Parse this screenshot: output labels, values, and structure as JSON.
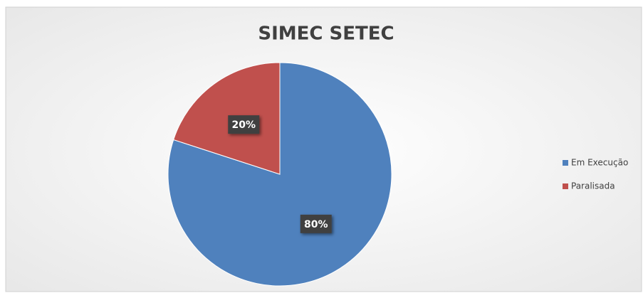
{
  "chart_data": {
    "type": "pie",
    "title": "SIMEC SETEC",
    "categories": [
      "Em Execução",
      "Paralisada"
    ],
    "values": [
      80,
      20
    ],
    "value_labels": [
      "80%",
      "20%"
    ],
    "colors": [
      "#4f81bd",
      "#c0504d"
    ],
    "legend": "right"
  }
}
